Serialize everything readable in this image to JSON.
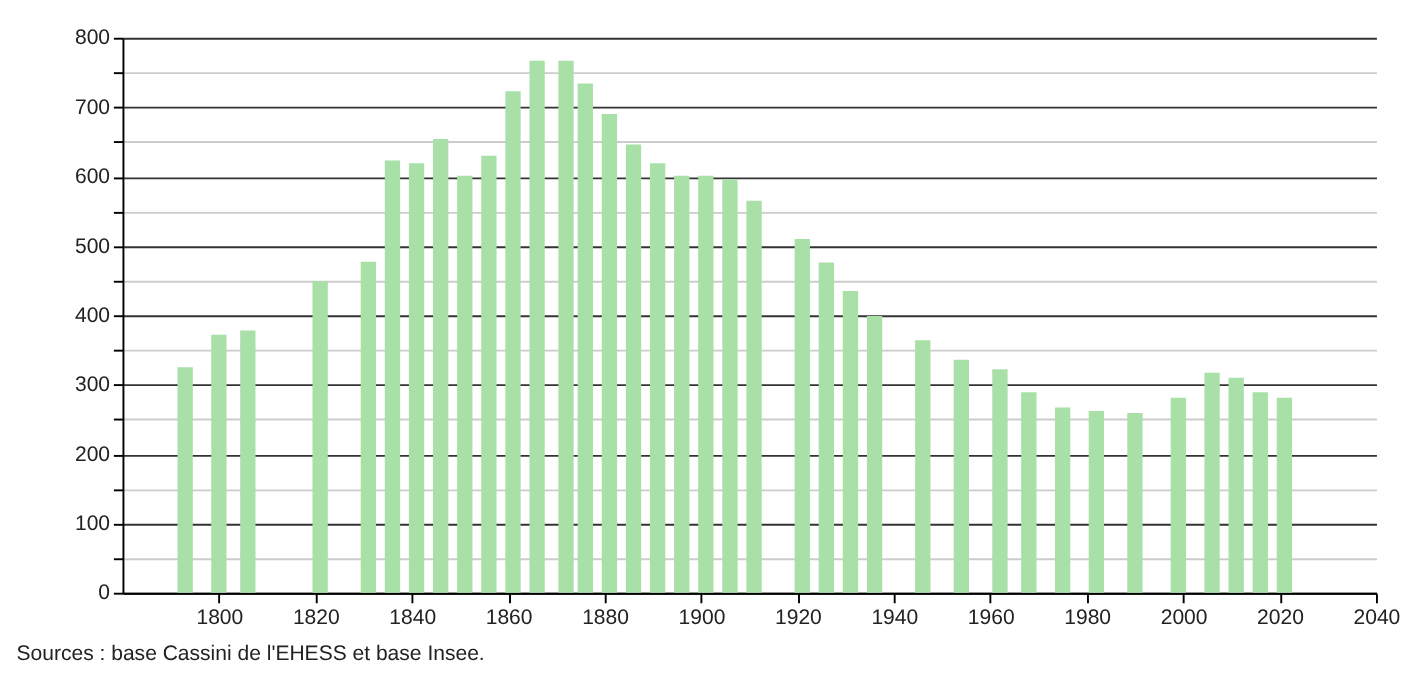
{
  "chart_data": {
    "type": "bar",
    "x": [
      1793,
      1800,
      1806,
      1821,
      1831,
      1836,
      1841,
      1846,
      1851,
      1856,
      1861,
      1866,
      1872,
      1876,
      1881,
      1886,
      1891,
      1896,
      1901,
      1906,
      1911,
      1921,
      1926,
      1931,
      1936,
      1946,
      1954,
      1962,
      1968,
      1975,
      1982,
      1990,
      1999,
      2006,
      2011,
      2016,
      2021
    ],
    "values": [
      325,
      372,
      378,
      449,
      477,
      623,
      619,
      654,
      601,
      630,
      723,
      767,
      767,
      734,
      690,
      646,
      619,
      601,
      601,
      596,
      565,
      510,
      476,
      435,
      399,
      364,
      336,
      322,
      289,
      267,
      262,
      259,
      281,
      317,
      310,
      289,
      281
    ],
    "color": "#a8e0a8",
    "xlim": [
      1780,
      2040
    ],
    "xticks": [
      1800,
      1820,
      1840,
      1860,
      1880,
      1900,
      1920,
      1940,
      1960,
      1980,
      2000,
      2020,
      2040
    ],
    "ylim": [
      0,
      800
    ],
    "yticks": [
      0,
      {
        "value": 50,
        "label": null
      },
      100,
      {
        "value": 150,
        "label": null
      },
      200,
      {
        "value": 250,
        "label": null
      },
      300,
      {
        "value": 350,
        "label": null
      },
      400,
      {
        "value": 450,
        "label": null
      },
      500,
      {
        "value": 550,
        "label": null
      },
      600,
      {
        "value": 650,
        "label": null
      },
      700,
      {
        "value": 750,
        "label": null
      },
      800
    ],
    "grid": "y",
    "annotations": [
      "Sources : base Cassini de l'EHESS et base Insee."
    ]
  }
}
